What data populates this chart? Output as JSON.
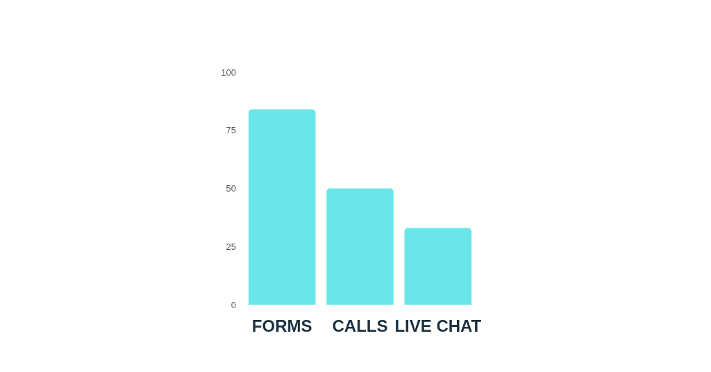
{
  "chart_data": {
    "type": "bar",
    "categories": [
      "FORMS",
      "CALLS",
      "LIVE CHAT"
    ],
    "values": [
      84,
      50,
      33
    ],
    "color": "#6ae6ea",
    "ylim": [
      0,
      100
    ],
    "yticks": [
      0,
      25,
      50,
      75,
      100
    ],
    "grid": false
  }
}
